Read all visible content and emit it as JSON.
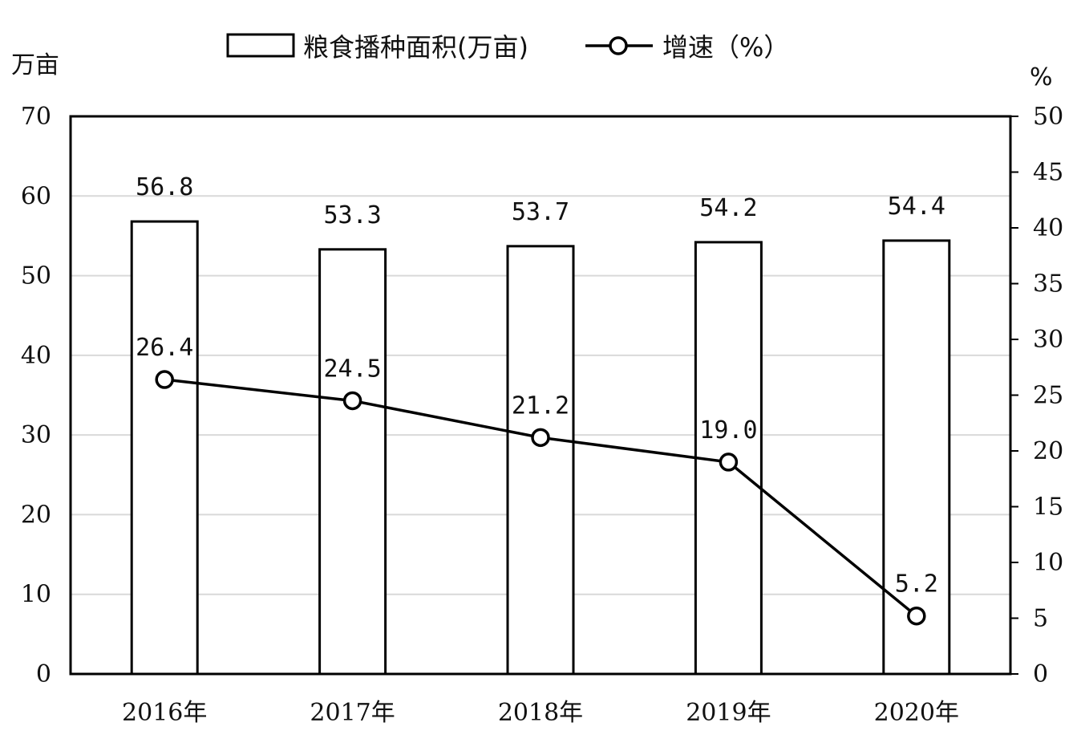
{
  "chart_data": {
    "type": "bar",
    "categories": [
      "2016年",
      "2017年",
      "2018年",
      "2019年",
      "2020年"
    ],
    "series": [
      {
        "name": "粮食播种面积(万亩)",
        "type": "bar",
        "axis": "left",
        "values": [
          56.8,
          53.3,
          53.7,
          54.2,
          54.4
        ]
      },
      {
        "name": "增速（%）",
        "type": "line",
        "axis": "right",
        "values": [
          26.4,
          24.5,
          21.2,
          19.0,
          5.2
        ]
      }
    ],
    "bar_labels": [
      "56.8",
      "53.3",
      "53.7",
      "54.2",
      "54.4"
    ],
    "line_labels": [
      "26.4",
      "24.5",
      "21.2",
      "19.0",
      "5.2"
    ],
    "y_left": {
      "unit": "万亩",
      "min": 0,
      "max": 70,
      "ticks": [
        "0",
        "10",
        "20",
        "30",
        "40",
        "50",
        "60",
        "70"
      ]
    },
    "y_right": {
      "unit": "%",
      "min": 0,
      "max": 50,
      "ticks": [
        "0",
        "5",
        "10",
        "15",
        "20",
        "25",
        "30",
        "35",
        "40",
        "45",
        "50"
      ]
    },
    "grid": true,
    "legend": "top",
    "colors": {
      "bar_fill": "#ffffff",
      "bar_stroke": "#000000",
      "line": "#000000",
      "grid": "#d9d9d9"
    }
  }
}
